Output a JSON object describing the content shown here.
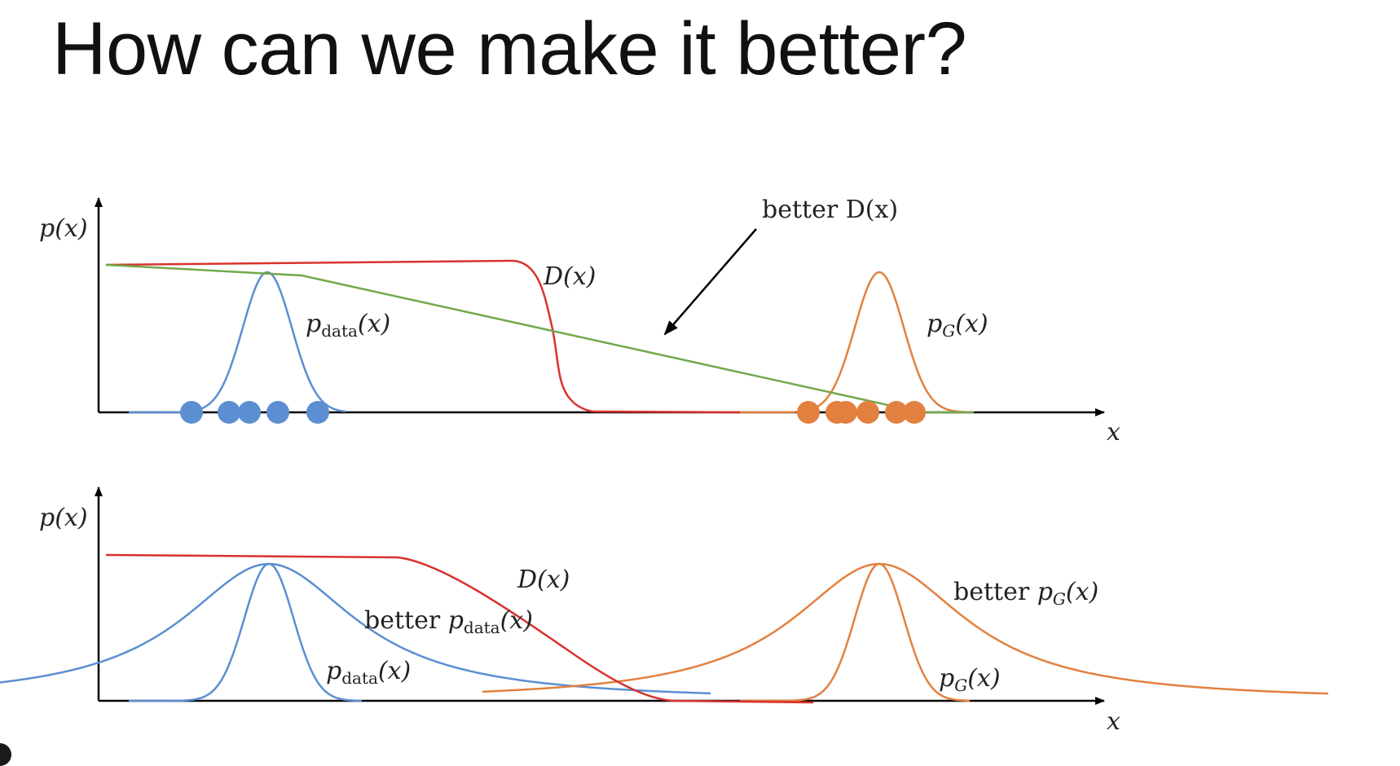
{
  "slide": {
    "title": "How can we make it better?"
  },
  "colors": {
    "data_blue": "#5b8fd1",
    "generator_orange": "#e2813f",
    "discriminator_red": "#d8322c",
    "better_discriminator_green": "#73a84a",
    "axis": "#000000"
  },
  "top_panel": {
    "y_axis_label": "p(x)",
    "x_axis_label": "x",
    "label_discriminator": "D(x)",
    "label_better_discriminator": "better D(x)",
    "label_data": {
      "main": "p",
      "sub": "data",
      "arg": "(x)"
    },
    "label_generator": {
      "main": "p",
      "sub": "G",
      "arg": "(x)"
    },
    "real_samples_count": 5,
    "generated_samples_count": 6
  },
  "bottom_panel": {
    "y_axis_label": "p(x)",
    "x_axis_label": "x",
    "label_discriminator": "D(x)",
    "label_better_data": {
      "prefix": "better ",
      "main": "p",
      "sub": "data",
      "arg": "(x)"
    },
    "label_better_generator": {
      "prefix": "better ",
      "main": "p",
      "sub": "G",
      "arg": "(x)"
    },
    "label_data": {
      "main": "p",
      "sub": "data",
      "arg": "(x)"
    },
    "label_generator": {
      "main": "p",
      "sub": "G",
      "arg": "(x)"
    }
  }
}
